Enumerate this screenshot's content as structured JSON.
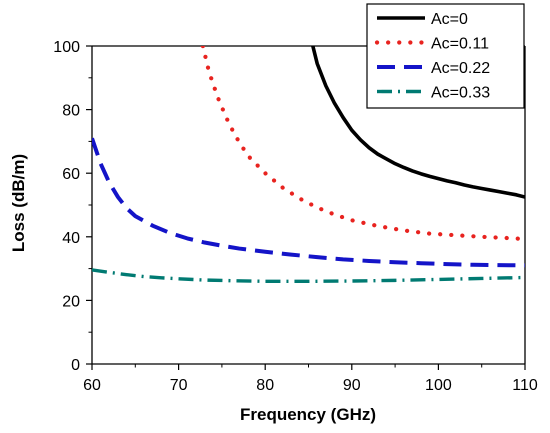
{
  "chart_data": {
    "type": "line",
    "title": "",
    "xlabel": "Frequency (GHz)",
    "ylabel": "Loss (dB/m)",
    "xlim": [
      60,
      110
    ],
    "ylim": [
      0,
      100
    ],
    "xticks": [
      60,
      70,
      80,
      90,
      100,
      110
    ],
    "yticks": [
      0,
      20,
      40,
      60,
      80,
      100
    ],
    "grid": false,
    "legend_position": "top-right",
    "series": [
      {
        "name": "Ac=0",
        "color": "#000000",
        "dash": "solid",
        "x": [
          85.5,
          86,
          87,
          88,
          89,
          90,
          91,
          92,
          93,
          94,
          95,
          96,
          97,
          98,
          99,
          100,
          101,
          102,
          103,
          104,
          105,
          106,
          107,
          108,
          109,
          110
        ],
        "y": [
          100,
          94.5,
          87.5,
          82,
          77.5,
          73.5,
          70.5,
          68,
          66,
          64.5,
          63,
          61.8,
          60.7,
          59.8,
          59,
          58.3,
          57.6,
          57,
          56.3,
          55.7,
          55.2,
          54.7,
          54.2,
          53.7,
          53.2,
          52.5
        ]
      },
      {
        "name": "Ac=0.11",
        "color": "#e8231f",
        "dash": "dot",
        "x": [
          72.8,
          73.5,
          74.5,
          75.5,
          76.5,
          78,
          80,
          82,
          84,
          86,
          88,
          90,
          93,
          96,
          99,
          102,
          105,
          108,
          110
        ],
        "y": [
          100,
          92,
          84,
          77.5,
          72,
          65.5,
          60,
          55.5,
          52,
          49.2,
          47,
          45.2,
          43.4,
          42,
          41,
          40.5,
          40,
          39.6,
          39.3
        ]
      },
      {
        "name": "Ac=0.22",
        "color": "#1414c8",
        "dash": "dash",
        "x": [
          60,
          61,
          62,
          63,
          64,
          65,
          67,
          69,
          71,
          73,
          75,
          77,
          80,
          83,
          86,
          89,
          92,
          95,
          98,
          101,
          104,
          107,
          110
        ],
        "y": [
          71,
          63,
          57,
          52.5,
          49,
          46.5,
          43.5,
          41.2,
          39.5,
          38.2,
          37.2,
          36.3,
          35.3,
          34.4,
          33.6,
          32.9,
          32.4,
          32,
          31.7,
          31.4,
          31.2,
          31.1,
          31
        ]
      },
      {
        "name": "Ac=0.33",
        "color": "#007a72",
        "dash": "dashdot",
        "x": [
          60,
          62,
          64,
          66,
          68,
          70,
          73,
          76,
          80,
          85,
          90,
          95,
          100,
          105,
          110
        ],
        "y": [
          29.6,
          28.8,
          28.1,
          27.5,
          27.1,
          26.8,
          26.4,
          26.2,
          26,
          26,
          26.1,
          26.3,
          26.6,
          26.9,
          27.2
        ]
      }
    ]
  }
}
